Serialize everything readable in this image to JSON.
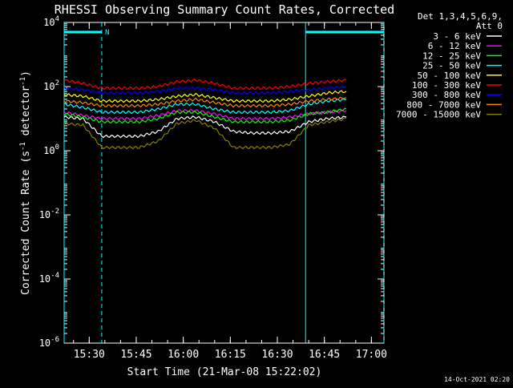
{
  "chart_data": {
    "type": "line",
    "title": "RHESSI Observing Summary Count Rates, Corrected",
    "xlabel": "Start Time (21-Mar-08 15:22:02)",
    "ylabel_main": "Corrected Count Rate (s",
    "ylabel_sup1": "-1",
    "ylabel_mid": " detector",
    "ylabel_sup2": "-1",
    "ylabel_end": ")",
    "yscale": "log",
    "ylim_exp": [
      -6,
      4
    ],
    "y_ticks": [
      {
        "base": "10",
        "exp": "4",
        "value_exp": 4
      },
      {
        "base": "10",
        "exp": "2",
        "value_exp": 2
      },
      {
        "base": "10",
        "exp": "0",
        "value_exp": 0
      },
      {
        "base": "10",
        "exp": "-2",
        "value_exp": -2
      },
      {
        "base": "10",
        "exp": "-4",
        "value_exp": -4
      },
      {
        "base": "10",
        "exp": "-6",
        "value_exp": -6
      }
    ],
    "x_ticks": [
      {
        "label": "15:30",
        "minutes": 8
      },
      {
        "label": "15:45",
        "minutes": 23
      },
      {
        "label": "16:00",
        "minutes": 38
      },
      {
        "label": "16:15",
        "minutes": 53
      },
      {
        "label": "16:30",
        "minutes": 68
      },
      {
        "label": "16:45",
        "minutes": 83
      },
      {
        "label": "17:00",
        "minutes": 98
      }
    ],
    "xlim_minutes": [
      0,
      102
    ],
    "legend_header": [
      "Det 1,3,4,5,6,9,",
      "Att 0"
    ],
    "series": [
      {
        "name": "3 - 6 keV",
        "color": "#ffffff",
        "values_log": [
          1.05,
          1.0,
          0.45,
          0.45,
          0.45,
          0.6,
          1.0,
          1.05,
          0.9,
          0.6,
          0.55,
          0.55,
          0.6,
          0.9,
          1.0,
          1.05
        ]
      },
      {
        "name": "6 - 12 keV",
        "color": "#ff00ff",
        "values_log": [
          1.2,
          1.1,
          1.0,
          1.0,
          1.0,
          1.1,
          1.25,
          1.25,
          1.15,
          1.0,
          1.0,
          1.0,
          1.05,
          1.15,
          1.2,
          1.25
        ]
      },
      {
        "name": "12 - 25 keV",
        "color": "#00ff00",
        "values_log": [
          1.15,
          1.05,
          0.9,
          0.9,
          0.9,
          1.0,
          1.2,
          1.2,
          1.05,
          0.9,
          0.9,
          0.9,
          0.95,
          1.15,
          1.2,
          1.3
        ]
      },
      {
        "name": "25 - 50 keV",
        "color": "#00ffff",
        "values_log": [
          1.45,
          1.35,
          1.2,
          1.2,
          1.2,
          1.3,
          1.45,
          1.45,
          1.3,
          1.2,
          1.2,
          1.2,
          1.25,
          1.45,
          1.55,
          1.6
        ]
      },
      {
        "name": "50 - 100 keV",
        "color": "#ffff00",
        "values_log": [
          1.75,
          1.7,
          1.55,
          1.55,
          1.55,
          1.6,
          1.7,
          1.75,
          1.65,
          1.55,
          1.55,
          1.55,
          1.6,
          1.7,
          1.8,
          1.85
        ]
      },
      {
        "name": "100 - 300 keV",
        "color": "#ff0000",
        "values_log": [
          2.2,
          2.1,
          1.95,
          1.95,
          1.95,
          2.0,
          2.15,
          2.2,
          2.1,
          1.95,
          1.95,
          1.95,
          2.0,
          2.1,
          2.15,
          2.2
        ]
      },
      {
        "name": "300 - 800 keV",
        "color": "#0000ff",
        "values_log": [
          1.95,
          1.9,
          1.8,
          1.8,
          1.8,
          1.85,
          1.95,
          1.95,
          1.9,
          1.8,
          1.8,
          1.8,
          1.85,
          1.9,
          1.95,
          2.0
        ]
      },
      {
        "name": "800 - 7000 keV",
        "color": "#ff8000",
        "values_log": [
          1.55,
          1.5,
          1.4,
          1.4,
          1.4,
          1.45,
          1.55,
          1.6,
          1.5,
          1.4,
          1.4,
          1.4,
          1.45,
          1.55,
          1.6,
          1.65
        ]
      },
      {
        "name": "7000 - 15000 keV",
        "color": "#808000",
        "values_log": [
          0.85,
          0.8,
          0.1,
          0.1,
          0.1,
          0.3,
          0.85,
          0.95,
          0.7,
          0.1,
          0.1,
          0.1,
          0.2,
          0.8,
          0.9,
          1.0
        ]
      }
    ],
    "series_x_minutes": [
      0,
      6,
      12,
      18,
      24,
      30,
      36,
      42,
      48,
      54,
      60,
      66,
      72,
      78,
      84,
      90
    ],
    "night_bars_minutes": [
      [
        0,
        12
      ],
      [
        77,
        102
      ]
    ],
    "flag_label": "N",
    "grid": false,
    "legend_position": "top-right"
  },
  "footer_timestamp": "14-Oct-2021 02:20"
}
